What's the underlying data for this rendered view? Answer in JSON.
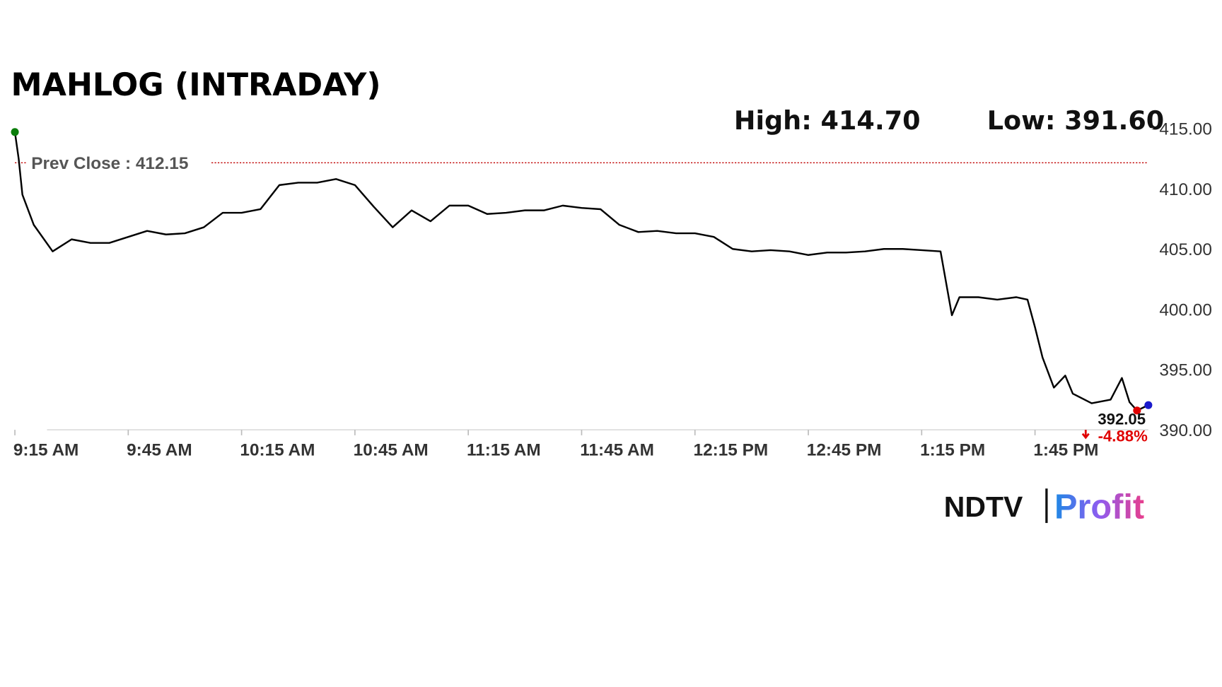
{
  "chart_data": {
    "type": "line",
    "title": "MAHLOG (INTRADAY)",
    "high": {
      "value": 414.7,
      "label": "High: 414.70"
    },
    "low": {
      "value": 391.6,
      "label": "Low: 391.60"
    },
    "prev_close": {
      "value": 412.15,
      "label": "Prev Close : 412.15"
    },
    "last": {
      "value": 392.05,
      "label": "392.05"
    },
    "change_label": "-4.88%",
    "x": [
      "9:15 AM",
      "9:16 AM",
      "9:17 AM",
      "9:20 AM",
      "9:25 AM",
      "9:30 AM",
      "9:35 AM",
      "9:40 AM",
      "9:45 AM",
      "9:50 AM",
      "9:55 AM",
      "10:00 AM",
      "10:05 AM",
      "10:10 AM",
      "10:15 AM",
      "10:20 AM",
      "10:25 AM",
      "10:30 AM",
      "10:35 AM",
      "10:40 AM",
      "10:45 AM",
      "10:50 AM",
      "10:55 AM",
      "11:00 AM",
      "11:05 AM",
      "11:10 AM",
      "11:15 AM",
      "11:20 AM",
      "11:25 AM",
      "11:30 AM",
      "11:35 AM",
      "11:40 AM",
      "11:45 AM",
      "11:50 AM",
      "11:55 AM",
      "12:00 PM",
      "12:05 PM",
      "12:10 PM",
      "12:15 PM",
      "12:20 PM",
      "12:25 PM",
      "12:30 PM",
      "12:35 PM",
      "12:40 PM",
      "12:45 PM",
      "12:50 PM",
      "12:55 PM",
      "1:00 PM",
      "1:05 PM",
      "1:10 PM",
      "1:15 PM",
      "1:20 PM",
      "1:23 PM",
      "1:25 PM",
      "1:30 PM",
      "1:35 PM",
      "1:40 PM",
      "1:43 PM",
      "1:45 PM",
      "1:47 PM",
      "1:50 PM",
      "1:53 PM",
      "1:55 PM",
      "2:00 PM",
      "2:05 PM",
      "2:08 PM",
      "2:10 PM",
      "2:12 PM",
      "2:15 PM"
    ],
    "series": [
      {
        "name": "MAHLOG",
        "color": "#000000",
        "values": [
          414.7,
          412.5,
          409.5,
          407.0,
          404.8,
          405.8,
          405.5,
          405.5,
          406.0,
          406.5,
          406.2,
          406.3,
          406.8,
          408.0,
          408.0,
          408.3,
          410.3,
          410.5,
          410.5,
          410.8,
          410.3,
          408.5,
          406.8,
          408.2,
          407.3,
          408.6,
          408.6,
          407.9,
          408.0,
          408.2,
          408.2,
          408.6,
          408.4,
          408.3,
          407.0,
          406.4,
          406.5,
          406.3,
          406.3,
          406.0,
          405.0,
          404.8,
          404.9,
          404.8,
          404.5,
          404.7,
          404.7,
          404.8,
          405.0,
          405.0,
          404.9,
          404.8,
          399.5,
          401.0,
          401.0,
          400.8,
          401.0,
          400.8,
          398.5,
          396.0,
          393.5,
          394.5,
          393.0,
          392.2,
          392.5,
          394.3,
          392.3,
          391.6,
          392.05
        ]
      }
    ],
    "xlim": [
      "9:15 AM",
      "2:15 PM"
    ],
    "xticks": [
      "9:15 AM",
      "9:45 AM",
      "10:15 AM",
      "10:45 AM",
      "11:15 AM",
      "11:45 AM",
      "12:15 PM",
      "12:45 PM",
      "1:15 PM",
      "1:45 PM"
    ],
    "ylim": [
      390,
      415
    ],
    "yticks": [
      {
        "value": 390,
        "label": "390.00"
      },
      {
        "value": 395,
        "label": "395.00"
      },
      {
        "value": 400,
        "label": "400.00"
      },
      {
        "value": 405,
        "label": "405.00"
      },
      {
        "value": 410,
        "label": "410.00"
      },
      {
        "value": 415,
        "label": "415.00"
      }
    ],
    "colors": {
      "high": "#0a7d0a",
      "low": "#e00000",
      "last": "#1a1acc",
      "prev_close": "#c00000"
    },
    "logo": [
      "NDTV",
      "Profit"
    ]
  }
}
